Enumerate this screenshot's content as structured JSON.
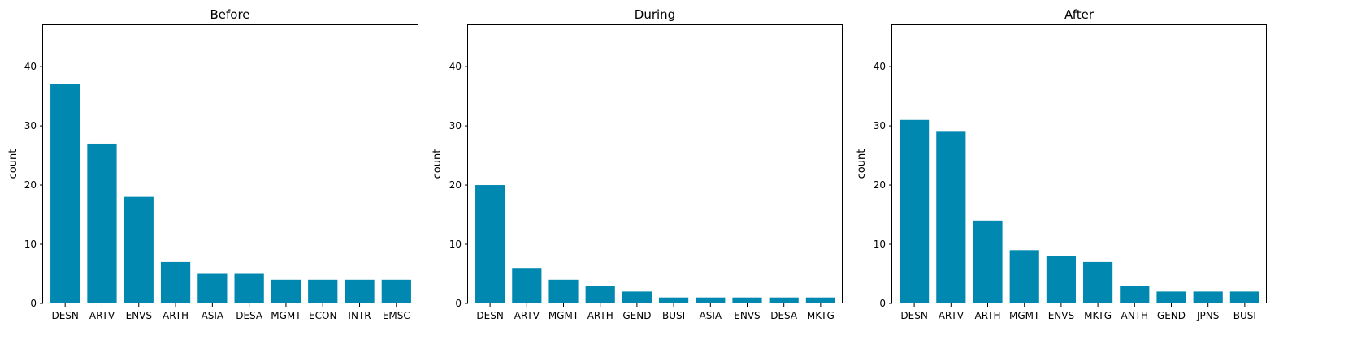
{
  "figure": {
    "bar_color": "#0088b0",
    "axes_color": "#000000",
    "background": "#ffffff"
  },
  "chart_data": [
    {
      "type": "bar",
      "title": "Before",
      "xlabel": "",
      "ylabel": "count",
      "ylim": [
        0,
        47
      ],
      "yticks": [
        0,
        10,
        20,
        30,
        40
      ],
      "grid": false,
      "categories": [
        "DESN",
        "ARTV",
        "ENVS",
        "ARTH",
        "ASIA",
        "DESA",
        "MGMT",
        "ECON",
        "INTR",
        "EMSC"
      ],
      "values": [
        37,
        27,
        18,
        7,
        5,
        5,
        4,
        4,
        4,
        4
      ]
    },
    {
      "type": "bar",
      "title": "During",
      "xlabel": "",
      "ylabel": "count",
      "ylim": [
        0,
        47
      ],
      "yticks": [
        0,
        10,
        20,
        30,
        40
      ],
      "grid": false,
      "categories": [
        "DESN",
        "ARTV",
        "MGMT",
        "ARTH",
        "GEND",
        "BUSI",
        "ASIA",
        "ENVS",
        "DESA",
        "MKTG"
      ],
      "values": [
        20,
        6,
        4,
        3,
        2,
        1,
        1,
        1,
        1,
        1
      ]
    },
    {
      "type": "bar",
      "title": "After",
      "xlabel": "",
      "ylabel": "count",
      "ylim": [
        0,
        47
      ],
      "yticks": [
        0,
        10,
        20,
        30,
        40
      ],
      "grid": false,
      "categories": [
        "DESN",
        "ARTV",
        "ARTH",
        "MGMT",
        "ENVS",
        "MKTG",
        "ANTH",
        "GEND",
        "JPNS",
        "BUSI"
      ],
      "values": [
        31,
        29,
        14,
        9,
        8,
        7,
        3,
        2,
        2,
        2
      ]
    }
  ]
}
